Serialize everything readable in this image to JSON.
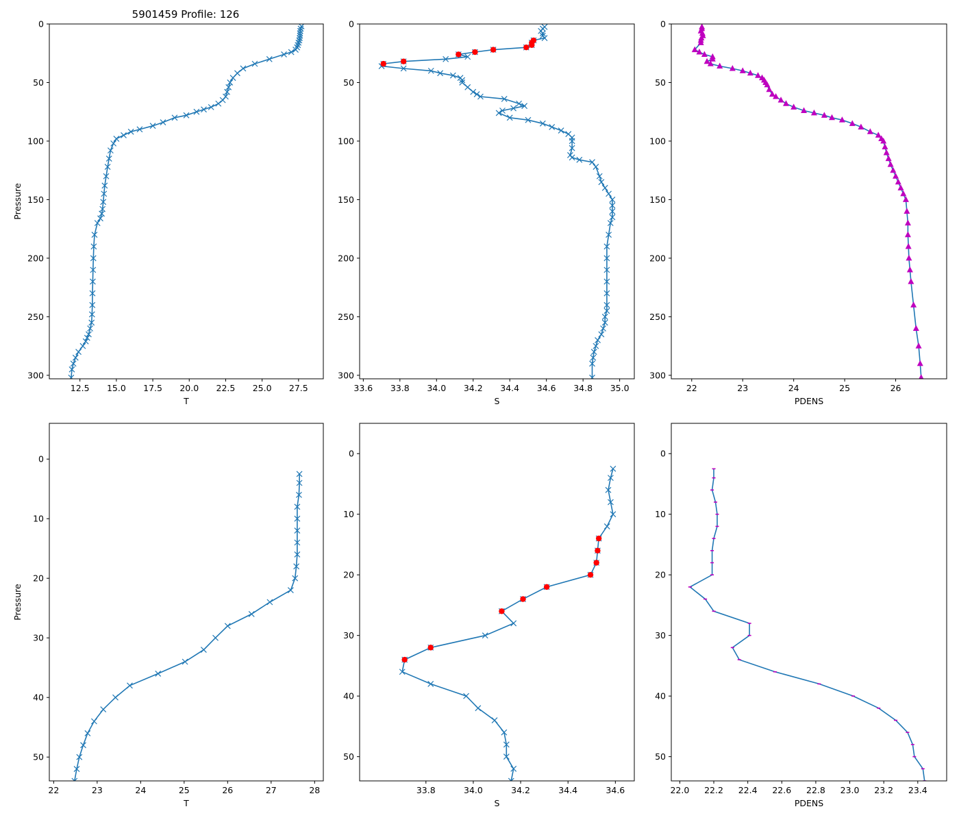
{
  "figure": {
    "title": "5901459 Profile: 126",
    "colors": {
      "line": "#1f77b4",
      "flag": "#ff0000",
      "density_marker": "#bf00bf",
      "axes": "#000000"
    }
  },
  "chart_data": [
    {
      "id": "temp_full",
      "type": "line",
      "xlabel": "T",
      "ylabel": "Pressure",
      "xlim": [
        10.4,
        29.2
      ],
      "ylim": [
        303,
        0
      ],
      "xticks": [
        12.5,
        15.0,
        17.5,
        20.0,
        22.5,
        25.0,
        27.5
      ],
      "xtick_labels": [
        "12.5",
        "15.0",
        "17.5",
        "20.0",
        "22.5",
        "25.0",
        "27.5"
      ],
      "yticks": [
        0,
        50,
        100,
        150,
        200,
        250,
        300
      ],
      "ytick_labels": [
        "0",
        "50",
        "100",
        "150",
        "200",
        "250",
        "300"
      ],
      "marker": "x",
      "series": [
        {
          "name": "T",
          "x": [
            27.7,
            27.65,
            27.62,
            27.6,
            27.6,
            27.58,
            27.55,
            27.5,
            27.45,
            27.4,
            27.3,
            27,
            26.5,
            25.5,
            24.5,
            23.7,
            23.3,
            23,
            22.8,
            22.7,
            22.6,
            22.5,
            22.3,
            22,
            21.5,
            21,
            20.5,
            19.8,
            19,
            18.2,
            17.5,
            16.6,
            16,
            15.5,
            15,
            14.8,
            14.6,
            14.5,
            14.4,
            14.3,
            14.2,
            14.15,
            14.1,
            14.05,
            14,
            13.9,
            13.7,
            13.5,
            13.45,
            13.42,
            13.4,
            13.38,
            13.36,
            13.35,
            13.33,
            13.3,
            13.2,
            13.1,
            13,
            12.9,
            12.7,
            12.4,
            12.2,
            12.05,
            11.95,
            11.9
          ],
          "y": [
            2,
            4,
            6,
            8,
            10,
            12,
            14,
            16,
            18,
            20,
            22,
            24,
            26,
            30,
            34,
            38,
            42,
            46,
            50,
            54,
            58,
            62,
            65,
            68,
            71,
            73,
            75,
            78,
            80,
            84,
            87,
            90,
            92,
            95,
            98,
            102,
            108,
            115,
            122,
            130,
            138,
            145,
            152,
            158,
            162,
            166,
            170,
            180,
            190,
            200,
            210,
            220,
            230,
            240,
            248,
            255,
            260,
            265,
            268,
            271,
            275,
            280,
            285,
            290,
            295,
            302
          ]
        }
      ]
    },
    {
      "id": "sal_full",
      "type": "line",
      "xlabel": "S",
      "ylabel": "",
      "xlim": [
        33.58,
        35.08
      ],
      "ylim": [
        303,
        0
      ],
      "xticks": [
        33.6,
        33.8,
        34.0,
        34.2,
        34.4,
        34.6,
        34.8,
        35.0
      ],
      "xtick_labels": [
        "33.6",
        "33.8",
        "34.0",
        "34.2",
        "34.4",
        "34.6",
        "34.8",
        "35.0"
      ],
      "yticks": [
        0,
        50,
        100,
        150,
        200,
        250,
        300
      ],
      "ytick_labels": [
        "0",
        "50",
        "100",
        "150",
        "200",
        "250",
        "300"
      ],
      "marker": "x",
      "series": [
        {
          "name": "S",
          "x": [
            34.59,
            34.58,
            34.57,
            34.58,
            34.58,
            34.59,
            34.53,
            34.52,
            34.52,
            34.49,
            34.31,
            34.21,
            34.12,
            34.17,
            34.05,
            33.82,
            33.71,
            33.7,
            33.82,
            33.97,
            34.02,
            34.09,
            34.13,
            34.14,
            34.14,
            34.17,
            34.2,
            34.22,
            34.24,
            34.37,
            34.45,
            34.48,
            34.42,
            34.36,
            34.34,
            34.4,
            34.5,
            34.58,
            34.63,
            34.68,
            34.72,
            34.74,
            34.74,
            34.74,
            34.73,
            34.74,
            34.78,
            34.85,
            34.87,
            34.89,
            34.9,
            34.92,
            34.94,
            34.96,
            34.96,
            34.96,
            34.96,
            34.95,
            34.94,
            34.93,
            34.93,
            34.93,
            34.93,
            34.93,
            34.93,
            34.93,
            34.92,
            34.92,
            34.91,
            34.9,
            34.88,
            34.87,
            34.86,
            34.855,
            34.85,
            34.85
          ],
          "y": [
            2.5,
            4,
            6,
            8,
            10,
            12,
            14,
            16,
            18,
            20,
            22,
            24,
            26,
            28,
            30,
            32,
            34,
            36,
            38,
            40,
            42,
            44,
            46,
            48,
            50,
            54,
            58,
            60,
            62,
            64,
            68,
            70,
            72,
            74,
            76,
            80,
            82,
            85,
            88,
            91,
            94,
            97,
            100,
            106,
            112,
            114,
            116,
            118,
            122,
            130,
            135,
            140,
            145,
            150,
            155,
            160,
            165,
            170,
            180,
            190,
            200,
            210,
            220,
            230,
            240,
            245,
            250,
            255,
            260,
            265,
            270,
            275,
            280,
            285,
            290,
            302
          ]
        },
        {
          "name": "flagged",
          "x": [
            34.53,
            34.52,
            34.52,
            34.49,
            34.31,
            34.21,
            34.12,
            33.82,
            33.71
          ],
          "y": [
            14,
            16,
            18,
            20,
            22,
            24,
            26,
            32,
            34
          ]
        }
      ]
    },
    {
      "id": "dens_full",
      "type": "line",
      "xlabel": "PDENS",
      "ylabel": "",
      "xlim": [
        21.6,
        27.0
      ],
      "ylim": [
        303,
        0
      ],
      "xticks": [
        22,
        23,
        24,
        25,
        26
      ],
      "xtick_labels": [
        "22",
        "23",
        "24",
        "25",
        "26"
      ],
      "yticks": [
        0,
        50,
        100,
        150,
        200,
        250,
        300
      ],
      "ytick_labels": [
        "0",
        "50",
        "100",
        "150",
        "200",
        "250",
        "300"
      ],
      "marker": "triangle",
      "series": [
        {
          "name": "PDENS",
          "x": [
            22.2,
            22.2,
            22.18,
            22.21,
            22.22,
            22.19,
            22.18,
            22.18,
            22.06,
            22.15,
            22.25,
            22.41,
            22.41,
            22.3,
            22.37,
            22.55,
            22.8,
            23,
            23.15,
            23.3,
            23.38,
            23.42,
            23.45,
            23.48,
            23.52,
            23.58,
            23.65,
            23.75,
            23.85,
            24,
            24.2,
            24.4,
            24.6,
            24.75,
            24.95,
            25.15,
            25.32,
            25.5,
            25.66,
            25.72,
            25.76,
            25.79,
            25.82,
            25.86,
            25.9,
            25.95,
            26.0,
            26.05,
            26.1,
            26.15,
            26.2,
            26.22,
            26.24,
            26.24,
            26.25,
            26.26,
            26.28,
            26.3,
            26.35,
            26.4,
            26.45,
            26.48,
            26.5
          ],
          "y": [
            2.5,
            4,
            6,
            8,
            10,
            12,
            14,
            16,
            22,
            24,
            26,
            28,
            30,
            32,
            34,
            36,
            38,
            40,
            42,
            44,
            46,
            48,
            50,
            52,
            56,
            60,
            62,
            65,
            68,
            71,
            74,
            76,
            78,
            80,
            82,
            85,
            88,
            92,
            95,
            98,
            100,
            105,
            110,
            115,
            120,
            125,
            130,
            135,
            140,
            145,
            150,
            160,
            170,
            180,
            190,
            200,
            210,
            220,
            240,
            260,
            275,
            290,
            302
          ]
        }
      ]
    },
    {
      "id": "temp_zoom",
      "type": "line",
      "xlabel": "T",
      "ylabel": "Pressure",
      "xlim": [
        21.9,
        28.2
      ],
      "ylim": [
        54,
        -6
      ],
      "xticks": [
        22,
        23,
        24,
        25,
        26,
        27,
        28
      ],
      "xtick_labels": [
        "22",
        "23",
        "24",
        "25",
        "26",
        "27",
        "28"
      ],
      "yticks": [
        0,
        10,
        20,
        30,
        40,
        50
      ],
      "ytick_labels": [
        "0",
        "10",
        "20",
        "30",
        "40",
        "50"
      ],
      "marker": "x",
      "series": [
        {
          "name": "T",
          "x": [
            27.65,
            27.65,
            27.64,
            27.6,
            27.6,
            27.6,
            27.6,
            27.6,
            27.58,
            27.55,
            27.45,
            26.97,
            26.55,
            26.0,
            25.72,
            25.45,
            25.02,
            24.4,
            23.75,
            23.42,
            23.14,
            22.93,
            22.78,
            22.68,
            22.59,
            22.53,
            22.48
          ],
          "y": [
            2.5,
            4,
            6,
            8,
            10,
            12,
            14,
            16,
            18,
            20,
            22,
            24,
            26,
            28,
            30,
            32,
            34,
            36,
            38,
            40,
            42,
            44,
            46,
            48,
            50,
            52,
            54
          ]
        }
      ]
    },
    {
      "id": "sal_zoom",
      "type": "line",
      "xlabel": "S",
      "ylabel": "",
      "xlim": [
        33.52,
        34.68
      ],
      "ylim": [
        54,
        -5
      ],
      "xticks": [
        33.8,
        34.0,
        34.2,
        34.4,
        34.6
      ],
      "xtick_labels": [
        "33.8",
        "34.0",
        "34.2",
        "34.4",
        "34.6"
      ],
      "yticks": [
        0,
        10,
        20,
        30,
        40,
        50
      ],
      "ytick_labels": [
        "0",
        "10",
        "20",
        "30",
        "40",
        "50"
      ],
      "marker": "x",
      "series": [
        {
          "name": "S",
          "x": [
            34.59,
            34.58,
            34.57,
            34.58,
            34.59,
            34.565,
            34.53,
            34.525,
            34.52,
            34.495,
            34.31,
            34.21,
            34.12,
            34.17,
            34.05,
            33.82,
            33.71,
            33.7,
            33.82,
            33.97,
            34.02,
            34.09,
            34.13,
            34.14,
            34.14,
            34.17,
            34.16
          ],
          "y": [
            2.5,
            4,
            6,
            8,
            10,
            12,
            14,
            16,
            18,
            20,
            22,
            24,
            26,
            28,
            30,
            32,
            34,
            36,
            38,
            40,
            42,
            44,
            46,
            48,
            50,
            52,
            54
          ]
        },
        {
          "name": "flagged",
          "x": [
            34.53,
            34.525,
            34.52,
            34.495,
            34.31,
            34.21,
            34.12,
            33.82,
            33.71
          ],
          "y": [
            14,
            16,
            18,
            20,
            22,
            24,
            26,
            32,
            34
          ]
        }
      ]
    },
    {
      "id": "dens_zoom",
      "type": "line",
      "xlabel": "PDENS",
      "ylabel": "",
      "xlim": [
        21.95,
        23.57
      ],
      "ylim": [
        54,
        -5
      ],
      "xticks": [
        22.0,
        22.2,
        22.4,
        22.6,
        22.8,
        23.0,
        23.2,
        23.4
      ],
      "xtick_labels": [
        "22.0",
        "22.2",
        "22.4",
        "22.6",
        "22.8",
        "23.0",
        "23.2",
        "23.4"
      ],
      "yticks": [
        0,
        10,
        20,
        30,
        40,
        50
      ],
      "ytick_labels": [
        "0",
        "10",
        "20",
        "30",
        "40",
        "50"
      ],
      "marker": "dash",
      "series": [
        {
          "name": "PDENS",
          "x": [
            22.2,
            22.2,
            22.19,
            22.21,
            22.22,
            22.22,
            22.2,
            22.19,
            22.19,
            22.19,
            22.06,
            22.15,
            22.2,
            22.41,
            22.41,
            22.31,
            22.35,
            22.56,
            22.82,
            23.02,
            23.17,
            23.27,
            23.34,
            23.37,
            23.38,
            23.43,
            23.44
          ],
          "y": [
            2.5,
            4,
            6,
            8,
            10,
            12,
            14,
            16,
            18,
            20,
            22,
            24,
            26,
            28,
            30,
            32,
            34,
            36,
            38,
            40,
            42,
            44,
            46,
            48,
            50,
            52,
            54
          ]
        }
      ]
    }
  ]
}
